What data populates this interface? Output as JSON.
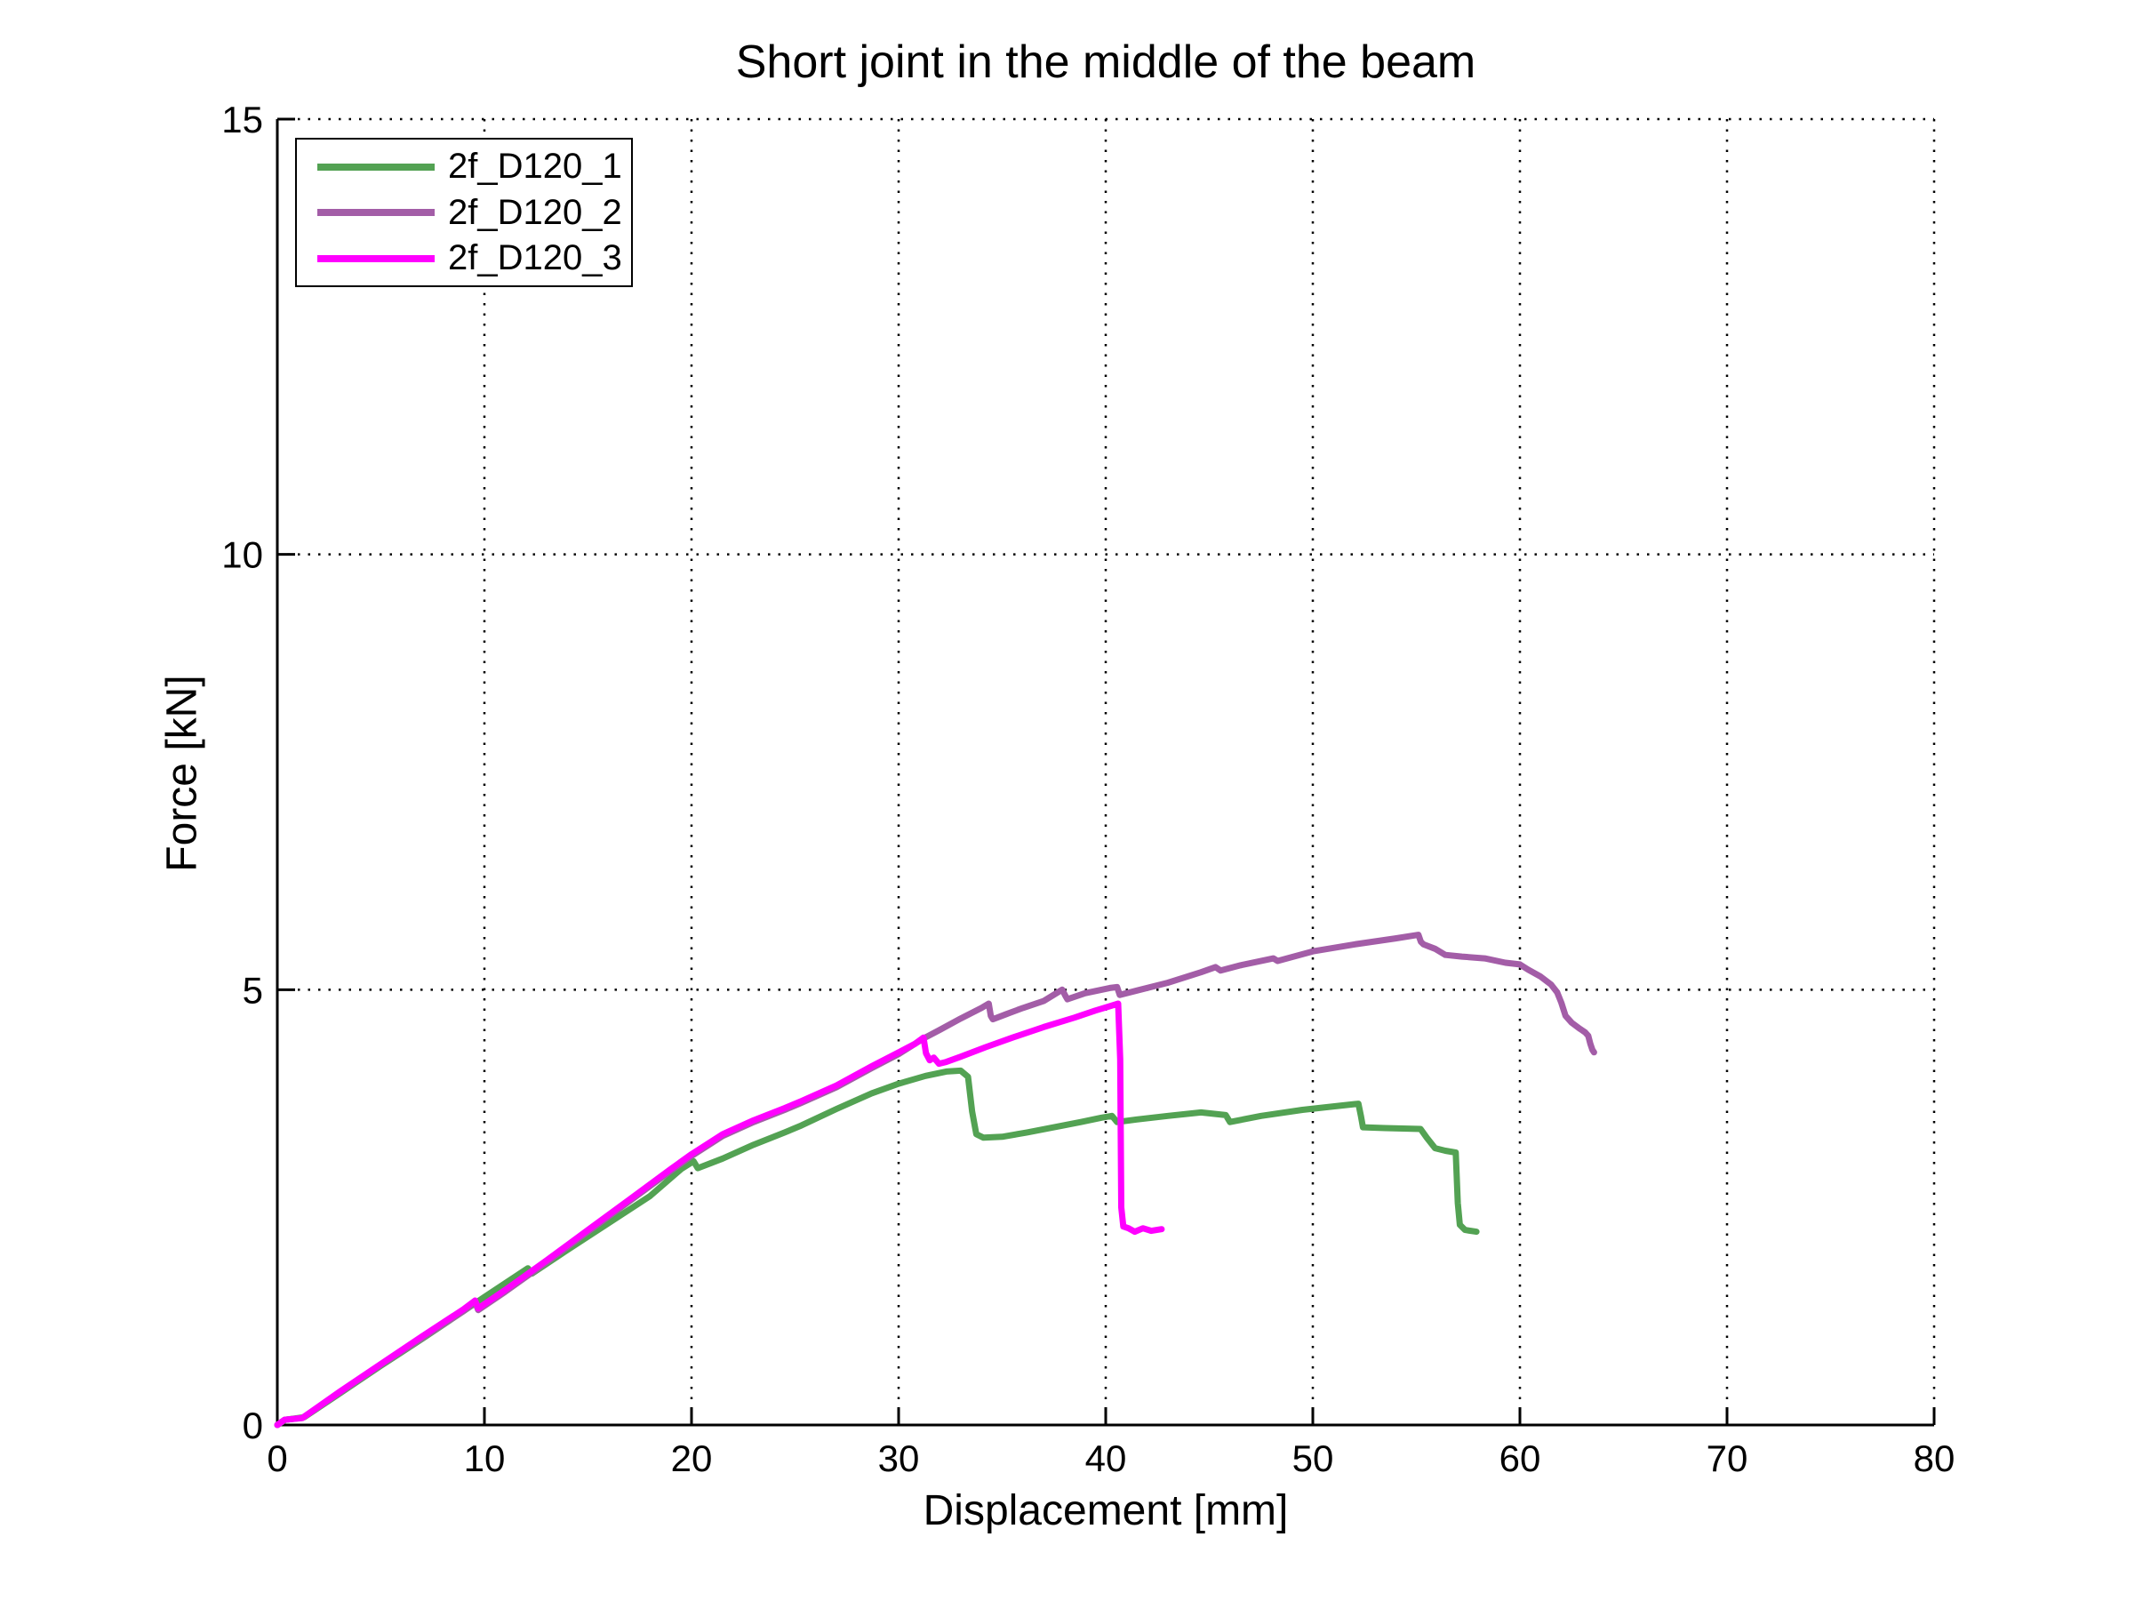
{
  "figure": {
    "title": "Short joint in the middle of the beam",
    "xlabel": "Displacement [mm]",
    "ylabel": "Force [kN]"
  },
  "chart_data": {
    "type": "line",
    "title": "Short joint in the middle of the beam",
    "xlabel": "Displacement [mm]",
    "ylabel": "Force [kN]",
    "xlim": [
      0,
      80
    ],
    "ylim": [
      0,
      15
    ],
    "xticks": [
      0,
      10,
      20,
      30,
      40,
      50,
      60,
      70,
      80
    ],
    "yticks": [
      0,
      5,
      10,
      15
    ],
    "grid": "dotted",
    "grid_color": "#000000",
    "axis_color": "#000000",
    "legend_position": "top-left",
    "series": [
      {
        "name": "2f_D120_1",
        "color": "#53a253",
        "points": [
          [
            0,
            0
          ],
          [
            0.4,
            0.06
          ],
          [
            1.3,
            0.09
          ],
          [
            3,
            0.36
          ],
          [
            5,
            0.68
          ],
          [
            7,
            0.99
          ],
          [
            9,
            1.31
          ],
          [
            10,
            1.47
          ],
          [
            12.1,
            1.8
          ],
          [
            12.3,
            1.74
          ],
          [
            14,
            2.01
          ],
          [
            16,
            2.32
          ],
          [
            18,
            2.63
          ],
          [
            19.5,
            2.94
          ],
          [
            20.1,
            3.03
          ],
          [
            20.3,
            2.95
          ],
          [
            21.5,
            3.06
          ],
          [
            23,
            3.22
          ],
          [
            24.5,
            3.36
          ],
          [
            25.3,
            3.44
          ],
          [
            27,
            3.63
          ],
          [
            28.7,
            3.81
          ],
          [
            30,
            3.92
          ],
          [
            31.3,
            4.01
          ],
          [
            32.3,
            4.06
          ],
          [
            33.0,
            4.07
          ],
          [
            33.35,
            4.0
          ],
          [
            33.55,
            3.6
          ],
          [
            33.75,
            3.34
          ],
          [
            34.1,
            3.3
          ],
          [
            35,
            3.31
          ],
          [
            36.2,
            3.36
          ],
          [
            37.5,
            3.42
          ],
          [
            38.8,
            3.48
          ],
          [
            39.8,
            3.53
          ],
          [
            40.3,
            3.55
          ],
          [
            40.55,
            3.48
          ],
          [
            41.5,
            3.51
          ],
          [
            43,
            3.55
          ],
          [
            44.6,
            3.59
          ],
          [
            45.8,
            3.56
          ],
          [
            46.0,
            3.48
          ],
          [
            47.5,
            3.55
          ],
          [
            49.5,
            3.62
          ],
          [
            51,
            3.66
          ],
          [
            52.2,
            3.69
          ],
          [
            52.32,
            3.55
          ],
          [
            52.42,
            3.42
          ],
          [
            53.5,
            3.41
          ],
          [
            55.2,
            3.4
          ],
          [
            55.5,
            3.3
          ],
          [
            55.9,
            3.18
          ],
          [
            56.4,
            3.15
          ],
          [
            56.9,
            3.13
          ],
          [
            57.0,
            2.55
          ],
          [
            57.1,
            2.3
          ],
          [
            57.35,
            2.24
          ],
          [
            57.9,
            2.22
          ]
        ]
      },
      {
        "name": "2f_D120_2",
        "color": "#a35da7",
        "points": [
          [
            0,
            0
          ],
          [
            0.35,
            0.06
          ],
          [
            1.2,
            0.08
          ],
          [
            3,
            0.37
          ],
          [
            5,
            0.69
          ],
          [
            7,
            1.0
          ],
          [
            9,
            1.31
          ],
          [
            9.55,
            1.41
          ],
          [
            9.7,
            1.32
          ],
          [
            11,
            1.53
          ],
          [
            13,
            1.87
          ],
          [
            15,
            2.22
          ],
          [
            17,
            2.57
          ],
          [
            19,
            2.92
          ],
          [
            20,
            3.09
          ],
          [
            21.5,
            3.32
          ],
          [
            23,
            3.48
          ],
          [
            24.5,
            3.62
          ],
          [
            25.3,
            3.7
          ],
          [
            27,
            3.88
          ],
          [
            28.7,
            4.1
          ],
          [
            30,
            4.26
          ],
          [
            31.2,
            4.44
          ],
          [
            32,
            4.54
          ],
          [
            33,
            4.67
          ],
          [
            34,
            4.79
          ],
          [
            34.35,
            4.84
          ],
          [
            34.45,
            4.7
          ],
          [
            34.55,
            4.66
          ],
          [
            35.2,
            4.72
          ],
          [
            36,
            4.79
          ],
          [
            37,
            4.87
          ],
          [
            37.9,
            5.0
          ],
          [
            38.05,
            4.93
          ],
          [
            38.15,
            4.89
          ],
          [
            39,
            4.96
          ],
          [
            40.2,
            5.02
          ],
          [
            40.55,
            5.03
          ],
          [
            40.68,
            4.94
          ],
          [
            41.5,
            4.99
          ],
          [
            43,
            5.08
          ],
          [
            44.6,
            5.2
          ],
          [
            45.3,
            5.26
          ],
          [
            45.55,
            5.22
          ],
          [
            46.5,
            5.28
          ],
          [
            48.1,
            5.36
          ],
          [
            48.3,
            5.33
          ],
          [
            50,
            5.44
          ],
          [
            52,
            5.52
          ],
          [
            54,
            5.59
          ],
          [
            55.1,
            5.63
          ],
          [
            55.22,
            5.55
          ],
          [
            55.35,
            5.52
          ],
          [
            55.9,
            5.47
          ],
          [
            56.4,
            5.4
          ],
          [
            57.2,
            5.38
          ],
          [
            58.3,
            5.36
          ],
          [
            59.3,
            5.31
          ],
          [
            60,
            5.29
          ],
          [
            60.4,
            5.23
          ],
          [
            61,
            5.15
          ],
          [
            61.5,
            5.06
          ],
          [
            61.8,
            4.97
          ],
          [
            62.0,
            4.85
          ],
          [
            62.2,
            4.7
          ],
          [
            62.5,
            4.62
          ],
          [
            62.9,
            4.55
          ],
          [
            63.15,
            4.51
          ],
          [
            63.3,
            4.47
          ],
          [
            63.4,
            4.38
          ],
          [
            63.5,
            4.31
          ],
          [
            63.58,
            4.28
          ]
        ]
      },
      {
        "name": "2f_D120_3",
        "color": "#ff00ff",
        "points": [
          [
            0,
            0
          ],
          [
            0.35,
            0.06
          ],
          [
            1.2,
            0.08
          ],
          [
            3,
            0.38
          ],
          [
            5,
            0.7
          ],
          [
            7,
            1.02
          ],
          [
            9,
            1.33
          ],
          [
            9.55,
            1.43
          ],
          [
            9.7,
            1.34
          ],
          [
            11,
            1.55
          ],
          [
            13,
            1.89
          ],
          [
            15,
            2.24
          ],
          [
            17,
            2.59
          ],
          [
            19,
            2.94
          ],
          [
            20,
            3.11
          ],
          [
            21.5,
            3.34
          ],
          [
            23,
            3.5
          ],
          [
            24.5,
            3.64
          ],
          [
            25.3,
            3.72
          ],
          [
            27,
            3.9
          ],
          [
            28.7,
            4.12
          ],
          [
            30,
            4.28
          ],
          [
            30.8,
            4.38
          ],
          [
            31.2,
            4.45
          ],
          [
            31.32,
            4.27
          ],
          [
            31.5,
            4.19
          ],
          [
            31.7,
            4.22
          ],
          [
            31.95,
            4.15
          ],
          [
            32.3,
            4.17
          ],
          [
            33,
            4.23
          ],
          [
            34.2,
            4.34
          ],
          [
            35.5,
            4.45
          ],
          [
            37,
            4.57
          ],
          [
            38.5,
            4.68
          ],
          [
            39.5,
            4.76
          ],
          [
            40.2,
            4.81
          ],
          [
            40.6,
            4.84
          ],
          [
            40.7,
            4.2
          ],
          [
            40.75,
            2.5
          ],
          [
            40.85,
            2.28
          ],
          [
            41.1,
            2.26
          ],
          [
            41.4,
            2.22
          ],
          [
            41.8,
            2.26
          ],
          [
            42.2,
            2.23
          ],
          [
            42.7,
            2.25
          ]
        ]
      }
    ]
  }
}
